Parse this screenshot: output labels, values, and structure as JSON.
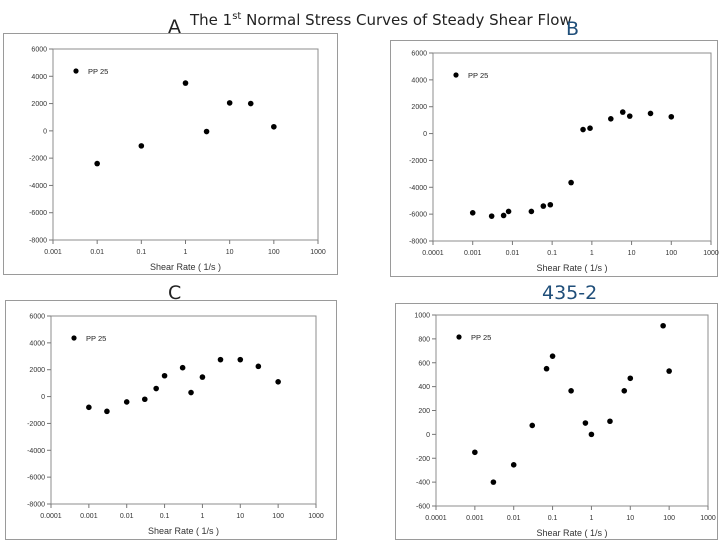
{
  "title": {
    "prefix": "The 1",
    "sup": "st",
    "suffix": " Normal Stress Curves of Steady Shear Flow"
  },
  "panel_labels": {
    "a": "A",
    "b": "B",
    "c": "C",
    "d": "435-2"
  },
  "chart_data": [
    {
      "type": "scatter",
      "title": "",
      "xlabel": "Shear Rate ( 1/s )",
      "ylabel": "",
      "xscale": "log",
      "xlim": [
        0.001,
        1000
      ],
      "ylim": [
        -8000,
        6000
      ],
      "x_ticks": [
        "0.001",
        "0.01",
        "0.1",
        "1",
        "10",
        "100",
        "1000"
      ],
      "y_ticks": [
        "6000",
        "4000",
        "2000",
        "0",
        "-2000",
        "-4000",
        "-6000",
        "-8000"
      ],
      "legend": {
        "position": "top-left",
        "entries": [
          "PP 25"
        ]
      },
      "series": [
        {
          "name": "PP 25",
          "x": [
            0.01,
            0.1,
            1,
            3,
            10,
            30,
            100
          ],
          "y": [
            -2400,
            -1100,
            3500,
            -50,
            2050,
            2000,
            300
          ]
        }
      ]
    },
    {
      "type": "scatter",
      "title": "",
      "xlabel": "Shear Rate ( 1/s )",
      "ylabel": "",
      "xscale": "log",
      "xlim": [
        0.0001,
        1000
      ],
      "ylim": [
        -8000,
        6000
      ],
      "x_ticks": [
        "0.0001",
        "0.001",
        "0.01",
        "0.1",
        "1",
        "10",
        "100",
        "1000"
      ],
      "y_ticks": [
        "6000",
        "4000",
        "2000",
        "0",
        "-2000",
        "-4000",
        "-6000",
        "-8000"
      ],
      "legend": {
        "position": "top-left",
        "entries": [
          "PP 25"
        ]
      },
      "series": [
        {
          "name": "PP 25",
          "x": [
            0.001,
            0.003,
            0.006,
            0.008,
            0.03,
            0.06,
            0.09,
            0.3,
            0.6,
            0.9,
            3,
            6,
            9,
            30,
            100
          ],
          "y": [
            -5900,
            -6150,
            -6100,
            -5800,
            -5800,
            -5400,
            -5300,
            -3650,
            300,
            400,
            1100,
            1600,
            1300,
            1500,
            1250
          ]
        }
      ]
    },
    {
      "type": "scatter",
      "title": "",
      "xlabel": "Shear Rate ( 1/s )",
      "ylabel": "",
      "xscale": "log",
      "xlim": [
        0.0001,
        1000
      ],
      "ylim": [
        -8000,
        6000
      ],
      "x_ticks": [
        "0.0001",
        "0.001",
        "0.01",
        "0.1",
        "1",
        "10",
        "100",
        "1000"
      ],
      "y_ticks": [
        "6000",
        "4000",
        "2000",
        "0",
        "-2000",
        "-4000",
        "-6000",
        "-8000"
      ],
      "legend": {
        "position": "top-left",
        "entries": [
          "PP 25"
        ]
      },
      "series": [
        {
          "name": "PP 25",
          "x": [
            0.001,
            0.003,
            0.01,
            0.03,
            0.06,
            0.1,
            0.3,
            0.5,
            1,
            3,
            10,
            30,
            100
          ],
          "y": [
            -800,
            -1100,
            -400,
            -200,
            600,
            1550,
            2150,
            300,
            1450,
            2750,
            2750,
            2250,
            1100
          ]
        }
      ]
    },
    {
      "type": "scatter",
      "title": "",
      "xlabel": "Shear Rate ( 1/s )",
      "ylabel": "",
      "xscale": "log",
      "xlim": [
        0.0001,
        1000
      ],
      "ylim": [
        -600,
        1000
      ],
      "x_ticks": [
        "0.0001",
        "0.001",
        "0.01",
        "0.1",
        "1",
        "10",
        "100",
        "1000"
      ],
      "y_ticks": [
        "1000",
        "800",
        "600",
        "400",
        "200",
        "0",
        "-200",
        "-400",
        "-600"
      ],
      "legend": {
        "position": "top-left",
        "entries": [
          "PP 25"
        ]
      },
      "series": [
        {
          "name": "PP 25",
          "x": [
            0.001,
            0.003,
            0.01,
            0.03,
            0.07,
            0.1,
            0.3,
            0.7,
            1,
            3,
            7,
            10,
            70,
            100
          ],
          "y": [
            -150,
            -400,
            -255,
            75,
            550,
            655,
            365,
            95,
            0,
            110,
            365,
            470,
            910,
            530
          ]
        }
      ]
    }
  ]
}
